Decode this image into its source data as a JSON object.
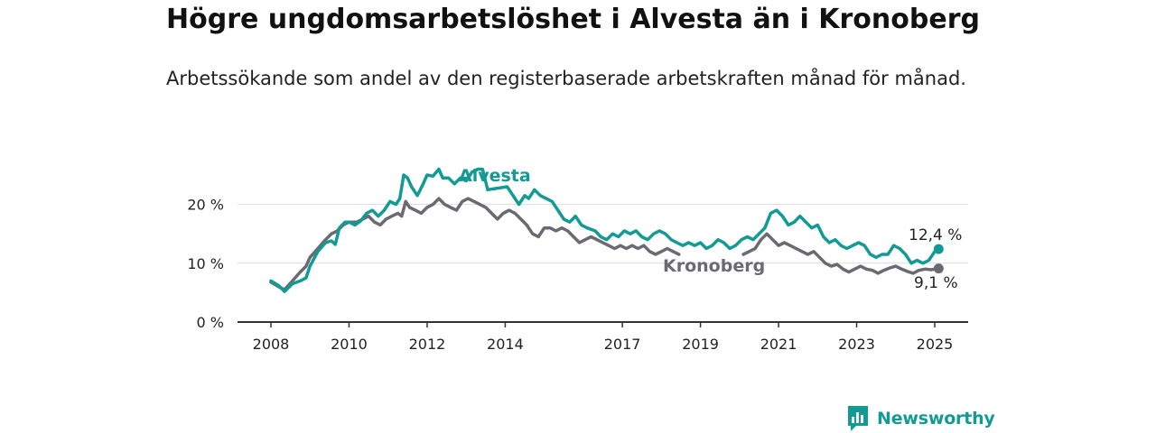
{
  "title": "Högre ungdomsarbetslöshet i Alvesta än i Kronoberg",
  "subtitle": "Arbetssökande som andel av den registerbaserade arbetskraften månad för månad.",
  "brand": "Newsworthy",
  "colors": {
    "alvesta": "#129b95",
    "kronoberg": "#6b6a72",
    "grid": "#dddddd",
    "axis": "#333333"
  },
  "chart_data": {
    "type": "line",
    "title": "Högre ungdomsarbetslöshet i Alvesta än i Kronoberg",
    "subtitle": "Arbetssökande som andel av den registerbaserade arbetskraften månad för månad.",
    "xlabel": "",
    "ylabel": "",
    "xlim": [
      2008,
      2025.5
    ],
    "ylim": [
      0,
      25
    ],
    "x_ticks": [
      2008,
      2010,
      2012,
      2014,
      2017,
      2019,
      2021,
      2023,
      2025
    ],
    "x_tick_labels": [
      "2008",
      "2010",
      "2012",
      "2014",
      "2017",
      "2019",
      "2021",
      "2023",
      "2025"
    ],
    "y_ticks": [
      0,
      10,
      20
    ],
    "y_tick_labels": [
      "0 %",
      "10 %",
      "20 %"
    ],
    "grid": "horizontal",
    "series": [
      {
        "name": "Alvesta",
        "color": "#129b95",
        "end_label": "12,4 %",
        "points": [
          [
            2008.0,
            7.0
          ],
          [
            2008.2,
            6.2
          ],
          [
            2008.35,
            5.2
          ],
          [
            2008.55,
            6.5
          ],
          [
            2008.75,
            7.0
          ],
          [
            2008.9,
            7.5
          ],
          [
            2009.0,
            9.5
          ],
          [
            2009.2,
            12.0
          ],
          [
            2009.4,
            13.5
          ],
          [
            2009.55,
            13.8
          ],
          [
            2009.65,
            13.2
          ],
          [
            2009.75,
            16.0
          ],
          [
            2009.9,
            17.0
          ],
          [
            2010.0,
            17.0
          ],
          [
            2010.15,
            16.5
          ],
          [
            2010.3,
            17.2
          ],
          [
            2010.45,
            18.5
          ],
          [
            2010.6,
            19.0
          ],
          [
            2010.75,
            18.0
          ],
          [
            2010.9,
            19.0
          ],
          [
            2011.05,
            20.5
          ],
          [
            2011.2,
            20.0
          ],
          [
            2011.3,
            21.0
          ],
          [
            2011.4,
            25.0
          ],
          [
            2011.5,
            24.5
          ],
          [
            2011.6,
            23.0
          ],
          [
            2011.75,
            21.5
          ],
          [
            2011.9,
            23.5
          ],
          [
            2012.0,
            25.0
          ],
          [
            2012.15,
            24.8
          ],
          [
            2012.3,
            26.0
          ],
          [
            2012.4,
            24.5
          ],
          [
            2012.55,
            24.5
          ],
          [
            2012.7,
            23.5
          ],
          [
            2012.85,
            24.5
          ],
          [
            2013.0,
            24.0
          ],
          [
            2013.15,
            25.5
          ],
          [
            2013.3,
            26.0
          ],
          [
            2013.42,
            26.0
          ],
          [
            2013.55,
            22.5
          ],
          [
            2014.05,
            23.0
          ],
          [
            2014.2,
            21.5
          ],
          [
            2014.35,
            20.0
          ],
          [
            2014.5,
            21.5
          ],
          [
            2014.6,
            21.0
          ],
          [
            2014.75,
            22.5
          ],
          [
            2014.9,
            21.5
          ],
          [
            2015.05,
            21.0
          ],
          [
            2015.2,
            20.5
          ],
          [
            2015.35,
            19.0
          ],
          [
            2015.5,
            17.5
          ],
          [
            2015.65,
            17.0
          ],
          [
            2015.8,
            18.0
          ],
          [
            2015.95,
            16.5
          ],
          [
            2016.1,
            16.0
          ],
          [
            2016.3,
            15.5
          ],
          [
            2016.45,
            14.5
          ],
          [
            2016.6,
            14.0
          ],
          [
            2016.75,
            15.0
          ],
          [
            2016.9,
            14.5
          ],
          [
            2017.05,
            15.5
          ],
          [
            2017.2,
            15.0
          ],
          [
            2017.35,
            15.5
          ],
          [
            2017.5,
            14.5
          ],
          [
            2017.65,
            14.0
          ],
          [
            2017.8,
            15.0
          ],
          [
            2017.95,
            15.5
          ],
          [
            2018.1,
            15.0
          ],
          [
            2018.25,
            14.0
          ],
          [
            2018.4,
            13.5
          ],
          [
            2018.55,
            13.0
          ],
          [
            2018.7,
            13.5
          ],
          [
            2018.85,
            13.0
          ],
          [
            2019.0,
            13.5
          ],
          [
            2019.15,
            12.5
          ],
          [
            2019.3,
            13.0
          ],
          [
            2019.45,
            14.0
          ],
          [
            2019.6,
            13.5
          ],
          [
            2019.75,
            12.5
          ],
          [
            2019.9,
            13.0
          ],
          [
            2020.05,
            14.0
          ],
          [
            2020.2,
            14.5
          ],
          [
            2020.35,
            14.0
          ],
          [
            2020.5,
            15.0
          ],
          [
            2020.65,
            16.0
          ],
          [
            2020.8,
            18.5
          ],
          [
            2020.95,
            19.0
          ],
          [
            2021.1,
            18.0
          ],
          [
            2021.25,
            16.5
          ],
          [
            2021.4,
            17.0
          ],
          [
            2021.55,
            18.0
          ],
          [
            2021.7,
            17.0
          ],
          [
            2021.85,
            16.0
          ],
          [
            2022.0,
            16.5
          ],
          [
            2022.15,
            14.5
          ],
          [
            2022.3,
            13.5
          ],
          [
            2022.45,
            14.0
          ],
          [
            2022.6,
            13.0
          ],
          [
            2022.75,
            12.5
          ],
          [
            2022.9,
            13.0
          ],
          [
            2023.05,
            13.5
          ],
          [
            2023.2,
            13.0
          ],
          [
            2023.35,
            11.5
          ],
          [
            2023.5,
            11.0
          ],
          [
            2023.65,
            11.5
          ],
          [
            2023.8,
            11.5
          ],
          [
            2023.95,
            13.0
          ],
          [
            2024.1,
            12.5
          ],
          [
            2024.25,
            11.5
          ],
          [
            2024.4,
            10.0
          ],
          [
            2024.55,
            10.5
          ],
          [
            2024.7,
            10.0
          ],
          [
            2024.85,
            10.5
          ],
          [
            2025.0,
            12.0
          ],
          [
            2025.1,
            12.4
          ]
        ]
      },
      {
        "name": "Kronoberg",
        "color": "#6b6a72",
        "end_label": "9,1 %",
        "points": [
          [
            2008.0,
            6.8
          ],
          [
            2008.2,
            6.0
          ],
          [
            2008.35,
            5.5
          ],
          [
            2008.55,
            7.0
          ],
          [
            2008.75,
            8.5
          ],
          [
            2008.9,
            9.5
          ],
          [
            2009.0,
            11.0
          ],
          [
            2009.2,
            12.5
          ],
          [
            2009.4,
            14.0
          ],
          [
            2009.55,
            15.0
          ],
          [
            2009.7,
            15.5
          ],
          [
            2009.85,
            16.5
          ],
          [
            2010.0,
            17.0
          ],
          [
            2010.2,
            17.0
          ],
          [
            2010.35,
            17.5
          ],
          [
            2010.5,
            18.0
          ],
          [
            2010.65,
            17.0
          ],
          [
            2010.8,
            16.5
          ],
          [
            2010.95,
            17.5
          ],
          [
            2011.1,
            18.0
          ],
          [
            2011.25,
            18.5
          ],
          [
            2011.35,
            18.0
          ],
          [
            2011.45,
            20.5
          ],
          [
            2011.55,
            19.5
          ],
          [
            2011.7,
            19.0
          ],
          [
            2011.85,
            18.5
          ],
          [
            2012.0,
            19.5
          ],
          [
            2012.15,
            20.0
          ],
          [
            2012.3,
            21.0
          ],
          [
            2012.45,
            20.0
          ],
          [
            2012.6,
            19.5
          ],
          [
            2012.75,
            19.0
          ],
          [
            2012.9,
            20.5
          ],
          [
            2013.05,
            21.0
          ],
          [
            2013.2,
            20.5
          ],
          [
            2013.35,
            20.0
          ],
          [
            2013.5,
            19.5
          ],
          [
            2013.65,
            18.5
          ],
          [
            2013.8,
            17.5
          ],
          [
            2013.95,
            18.5
          ],
          [
            2014.1,
            19.0
          ],
          [
            2014.25,
            18.5
          ],
          [
            2014.4,
            17.5
          ],
          [
            2014.55,
            16.5
          ],
          [
            2014.7,
            15.0
          ],
          [
            2014.85,
            14.5
          ],
          [
            2015.0,
            16.0
          ],
          [
            2015.15,
            16.0
          ],
          [
            2015.3,
            15.5
          ],
          [
            2015.45,
            16.0
          ],
          [
            2015.6,
            15.5
          ],
          [
            2015.75,
            14.5
          ],
          [
            2015.9,
            13.5
          ],
          [
            2016.05,
            14.0
          ],
          [
            2016.2,
            14.5
          ],
          [
            2016.35,
            14.0
          ],
          [
            2016.5,
            13.5
          ],
          [
            2016.65,
            13.0
          ],
          [
            2016.8,
            12.5
          ],
          [
            2016.95,
            13.0
          ],
          [
            2017.1,
            12.5
          ],
          [
            2017.25,
            13.0
          ],
          [
            2017.4,
            12.5
          ],
          [
            2017.55,
            13.0
          ],
          [
            2017.7,
            12.0
          ],
          [
            2017.85,
            11.5
          ],
          [
            2018.0,
            12.0
          ],
          [
            2018.15,
            12.5
          ],
          [
            2018.3,
            12.0
          ],
          [
            2018.45,
            11.5
          ],
          [
            2020.1,
            11.5
          ],
          [
            2020.25,
            12.0
          ],
          [
            2020.4,
            12.5
          ],
          [
            2020.55,
            14.0
          ],
          [
            2020.7,
            15.0
          ],
          [
            2020.85,
            14.0
          ],
          [
            2021.0,
            13.0
          ],
          [
            2021.15,
            13.5
          ],
          [
            2021.3,
            13.0
          ],
          [
            2021.45,
            12.5
          ],
          [
            2021.6,
            12.0
          ],
          [
            2021.75,
            11.5
          ],
          [
            2021.9,
            12.0
          ],
          [
            2022.05,
            11.0
          ],
          [
            2022.2,
            10.0
          ],
          [
            2022.35,
            9.5
          ],
          [
            2022.5,
            9.8
          ],
          [
            2022.65,
            9.0
          ],
          [
            2022.8,
            8.5
          ],
          [
            2022.95,
            9.0
          ],
          [
            2023.1,
            9.5
          ],
          [
            2023.25,
            9.0
          ],
          [
            2023.4,
            8.8
          ],
          [
            2023.55,
            8.3
          ],
          [
            2023.7,
            8.8
          ],
          [
            2023.85,
            9.2
          ],
          [
            2024.0,
            9.5
          ],
          [
            2024.15,
            9.0
          ],
          [
            2024.3,
            8.6
          ],
          [
            2024.45,
            8.3
          ],
          [
            2024.6,
            8.8
          ],
          [
            2024.75,
            9.0
          ],
          [
            2024.9,
            8.9
          ],
          [
            2025.1,
            9.1
          ]
        ]
      }
    ]
  }
}
